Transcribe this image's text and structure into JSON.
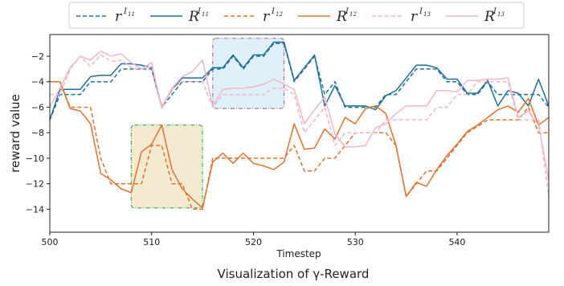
{
  "chart_data": {
    "type": "line",
    "xlabel": "Timestep",
    "ylabel": "reward value",
    "caption": "Visualization of γ-Reward",
    "xlim": [
      500,
      549
    ],
    "ylim": [
      -15.8,
      -0.3
    ],
    "xticks": [
      500,
      510,
      520,
      530,
      540
    ],
    "yticks": [
      -2,
      -4,
      -6,
      -8,
      -10,
      -12,
      -14
    ],
    "x": [
      500,
      501,
      502,
      503,
      504,
      505,
      506,
      507,
      508,
      509,
      510,
      511,
      512,
      513,
      514,
      515,
      516,
      517,
      518,
      519,
      520,
      521,
      522,
      523,
      524,
      525,
      526,
      527,
      528,
      529,
      530,
      531,
      532,
      533,
      534,
      535,
      536,
      537,
      538,
      539,
      540,
      541,
      542,
      543,
      544,
      545,
      546,
      547,
      548,
      549
    ],
    "legend": {
      "position": "top",
      "entries": [
        {
          "base": "r",
          "sup": "I",
          "sub": "11"
        },
        {
          "base": "R",
          "sup": "I",
          "sub": "11"
        },
        {
          "base": "r",
          "sup": "I",
          "sub": "12"
        },
        {
          "base": "R",
          "sup": "I",
          "sub": "12"
        },
        {
          "base": "r",
          "sup": "I",
          "sub": "13"
        },
        {
          "base": "R",
          "sup": "I",
          "sub": "13"
        }
      ]
    },
    "series": [
      {
        "color": "#1f6f99",
        "dash": true,
        "values": [
          -7,
          -5,
          -5,
          -5,
          -4,
          -4,
          -4,
          -3,
          -3,
          -3,
          -3,
          -6,
          -5,
          -4,
          -4,
          -4,
          -3,
          -3,
          -2,
          -3,
          -2,
          -2,
          -1,
          -1,
          -4,
          -3,
          -2,
          -5,
          -4,
          -6,
          -6,
          -6,
          -6,
          -5,
          -5,
          -4,
          -3,
          -3,
          -3,
          -4,
          -4,
          -5,
          -5,
          -4,
          -5,
          -5,
          -5,
          -5,
          -5,
          -6
        ]
      },
      {
        "color": "#1f6f99",
        "dash": false,
        "values": [
          -7,
          -4.6,
          -4.6,
          -4.6,
          -3.6,
          -3.5,
          -3.5,
          -2.6,
          -2.6,
          -2.7,
          -2.9,
          -6,
          -4.6,
          -3.7,
          -3.7,
          -3.7,
          -2.9,
          -2.9,
          -1.9,
          -2.9,
          -1.9,
          -1.9,
          -0.9,
          -0.9,
          -3.9,
          -2.9,
          -1.9,
          -5.9,
          -4.3,
          -5.9,
          -5.9,
          -5.9,
          -6.2,
          -5.1,
          -4.7,
          -3.7,
          -2.7,
          -2.7,
          -2.9,
          -3.8,
          -3.8,
          -4.9,
          -4.9,
          -3.9,
          -5.9,
          -4.7,
          -4.9,
          -5.9,
          -3.8,
          -5.9
        ]
      },
      {
        "color": "#e07030",
        "dash": true,
        "values": [
          -4,
          -4,
          -6,
          -6,
          -6,
          -10,
          -12,
          -12,
          -12,
          -12,
          -9,
          -9,
          -12,
          -12,
          -14,
          -14,
          -10,
          -10,
          -10,
          -10,
          -10,
          -10,
          -10,
          -10,
          -9,
          -11,
          -11,
          -10,
          -10,
          -9,
          -8,
          -8,
          -8,
          -8,
          -9,
          -13,
          -12,
          -11,
          -11,
          -10,
          -9,
          -8,
          -7.5,
          -7,
          -7,
          -7,
          -7,
          -6,
          -8,
          -8
        ]
      },
      {
        "color": "#e07030",
        "dash": false,
        "values": [
          -4,
          -4,
          -6.1,
          -6.3,
          -7.3,
          -11.2,
          -11.7,
          -12.4,
          -12.7,
          -9.5,
          -8.9,
          -7.4,
          -10.9,
          -12.4,
          -13.2,
          -13.9,
          -10.3,
          -9.6,
          -10.4,
          -9.6,
          -10.4,
          -10.6,
          -10.9,
          -10.3,
          -7.3,
          -9.3,
          -9.2,
          -7.7,
          -8.5,
          -6.8,
          -7.3,
          -6.1,
          -5.9,
          -6.5,
          -9,
          -13,
          -11.9,
          -12.2,
          -10.9,
          -9.8,
          -8.9,
          -7.9,
          -7.4,
          -6.8,
          -6.2,
          -5.9,
          -6.4,
          -5.3,
          -7.4,
          -6.8
        ]
      },
      {
        "color": "#f2b6c6",
        "dash": true,
        "values": [
          -5,
          -5,
          -3,
          -2,
          -2.8,
          -1.9,
          -2.4,
          -2.3,
          -2.9,
          -3.0,
          -2.8,
          -5.9,
          -4.6,
          -4,
          -4,
          -4,
          -6,
          -5,
          -5,
          -5,
          -5,
          -5,
          -4.5,
          -4.5,
          -5,
          -8,
          -7,
          -6,
          -9,
          -8,
          -8,
          -8,
          -8,
          -7,
          -7,
          -7,
          -7,
          -7,
          -6,
          -6,
          -5,
          -5,
          -4,
          -4,
          -4,
          -4,
          -7,
          -7,
          -7,
          -13
        ]
      },
      {
        "color": "#f2b6c6",
        "dash": false,
        "values": [
          -6,
          -4.5,
          -2.9,
          -2,
          -2.3,
          -1.6,
          -2,
          -1.8,
          -2.5,
          -3.0,
          -2.5,
          -6.1,
          -4.5,
          -3.6,
          -3.2,
          -2.3,
          -5.9,
          -4.6,
          -4.5,
          -4.5,
          -4.4,
          -4.2,
          -3.8,
          -4.2,
          -4.6,
          -7.3,
          -6.2,
          -5.2,
          -8.1,
          -9.1,
          -9.1,
          -9.0,
          -7.6,
          -7.3,
          -6.5,
          -5.9,
          -5.9,
          -5.9,
          -4.7,
          -4.7,
          -4.8,
          -3.9,
          -3.9,
          -3.8,
          -3.8,
          -3.7,
          -6.8,
          -6.3,
          -7.4,
          -11.7
        ]
      }
    ],
    "highlights": [
      {
        "x0": 508,
        "x1": 515,
        "y0": -13.9,
        "y1": -7.4,
        "fill": "#f4ead2",
        "stroke": "#3aa84a"
      },
      {
        "x0": 516,
        "x1": 523,
        "y0": -6.1,
        "y1": -0.6,
        "fill": "#dff0f8",
        "stroke": "#a066b0"
      }
    ]
  }
}
